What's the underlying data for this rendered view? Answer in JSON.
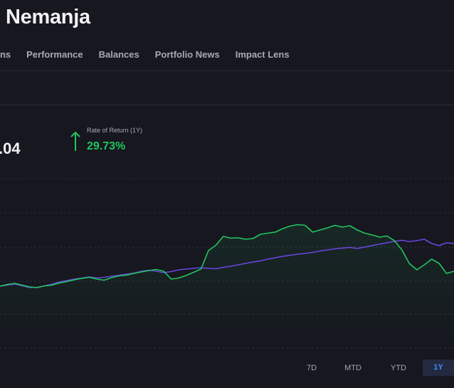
{
  "header": {
    "title": "Nemanja"
  },
  "nav": {
    "tabs": [
      {
        "label": "ons"
      },
      {
        "label": "Performance"
      },
      {
        "label": "Balances"
      },
      {
        "label": "Portfolio News"
      },
      {
        "label": "Impact Lens"
      }
    ]
  },
  "summary": {
    "balance_fragment": ".04",
    "rate_of_return_label": "Rate of Return (1Y)",
    "rate_of_return_value": "29.73%",
    "trend_icon": "arrow-up-icon"
  },
  "range": {
    "options": [
      {
        "label": "7D",
        "selected": false
      },
      {
        "label": "MTD",
        "selected": false
      },
      {
        "label": "YTD",
        "selected": false
      },
      {
        "label": "1Y",
        "selected": true
      }
    ]
  },
  "colors": {
    "background": "#16171f",
    "portfolio_line": "#22c55e",
    "benchmark_line": "#6b46e0",
    "accent_selected": "#3d8bff"
  },
  "chart_data": {
    "type": "line",
    "title": "",
    "xlabel": "",
    "ylabel": "",
    "grid": true,
    "legend": "none",
    "x_count": 62,
    "series": [
      {
        "values": [
          0.0,
          0.5,
          0.8,
          0.3,
          -0.2,
          -0.4,
          0.1,
          0.3,
          0.9,
          1.3,
          1.8,
          2.2,
          2.5,
          2.0,
          1.7,
          2.4,
          2.9,
          3.1,
          3.6,
          4.0,
          4.4,
          4.7,
          4.2,
          2.0,
          2.3,
          3.0,
          3.9,
          4.8,
          10.0,
          11.5,
          14.0,
          13.5,
          13.6,
          13.2,
          13.4,
          14.6,
          14.9,
          15.2,
          16.2,
          16.9,
          17.3,
          17.1,
          15.2,
          15.8,
          16.4,
          17.1,
          16.6,
          17.0,
          15.8,
          14.9,
          14.4,
          13.8,
          14.1,
          12.8,
          10.2,
          6.4,
          4.6,
          6.0,
          7.6,
          6.4,
          3.6,
          4.2
        ]
      },
      {
        "values": [
          0.0,
          0.3,
          0.6,
          0.1,
          -0.4,
          -0.3,
          0.1,
          0.6,
          1.2,
          1.6,
          2.0,
          2.3,
          2.6,
          2.3,
          2.5,
          2.8,
          3.1,
          3.4,
          3.7,
          4.2,
          4.5,
          4.2,
          3.8,
          4.1,
          4.6,
          4.8,
          5.0,
          5.2,
          5.0,
          4.9,
          5.3,
          5.6,
          6.0,
          6.4,
          6.8,
          7.1,
          7.6,
          8.0,
          8.4,
          8.7,
          9.0,
          9.2,
          9.5,
          9.9,
          10.2,
          10.5,
          10.7,
          10.9,
          10.6,
          11.0,
          11.4,
          11.8,
          12.2,
          12.6,
          12.9,
          12.5,
          12.8,
          13.2,
          12.0,
          11.4,
          12.2,
          12.0
        ]
      }
    ]
  }
}
